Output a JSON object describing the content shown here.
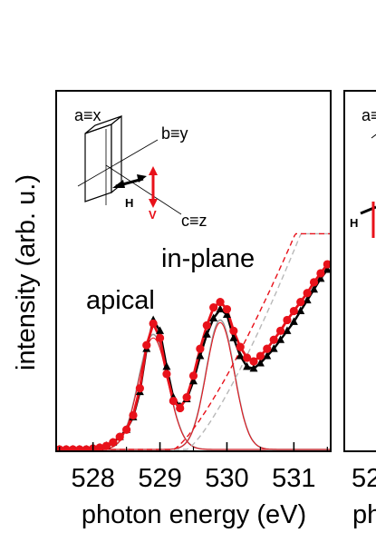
{
  "chart_data": {
    "type": "line",
    "xlabel": "photon energy (eV)",
    "ylabel": "intensity (arb. u.)",
    "xlim": [
      527.45,
      531.55
    ],
    "ylim": [
      0,
      1.0
    ],
    "xticks": [
      528,
      529,
      530,
      531
    ],
    "xtick_labels": [
      "528",
      "529",
      "530",
      "531"
    ],
    "annotations": {
      "apical": "apical",
      "in_plane": "in-plane"
    },
    "inset": {
      "a_label": "a≡x",
      "b_label": "b≡y",
      "c_label": "c≡z",
      "h_label": "H",
      "v_label": "V"
    },
    "second_panel_fragments": {
      "a_label": "a≡",
      "h_label": "H",
      "tick_fragment": "52",
      "xlabel_fragment": "ph"
    },
    "series": [
      {
        "marker": "triangle",
        "color": "#000000",
        "x": [
          527.5,
          527.6,
          527.7,
          527.8,
          527.9,
          528.0,
          528.1,
          528.2,
          528.3,
          528.4,
          528.5,
          528.6,
          528.7,
          528.8,
          528.9,
          529.0,
          529.1,
          529.2,
          529.3,
          529.4,
          529.5,
          529.6,
          529.7,
          529.8,
          529.9,
          530.0,
          530.1,
          530.2,
          530.3,
          530.4,
          530.5,
          530.6,
          530.7,
          530.8,
          530.9,
          531.0,
          531.1,
          531.2,
          531.3,
          531.4,
          531.5
        ],
        "values": [
          0.0,
          0.0,
          0.0,
          0.0,
          0.0,
          0.005,
          0.01,
          0.02,
          0.04,
          0.07,
          0.11,
          0.18,
          0.32,
          0.56,
          0.72,
          0.66,
          0.46,
          0.29,
          0.24,
          0.28,
          0.38,
          0.52,
          0.64,
          0.73,
          0.78,
          0.75,
          0.62,
          0.52,
          0.46,
          0.45,
          0.48,
          0.52,
          0.56,
          0.61,
          0.66,
          0.71,
          0.77,
          0.83,
          0.89,
          0.95,
          1.0
        ]
      },
      {
        "marker": "circle",
        "color": "#e8111a",
        "x": [
          527.5,
          527.6,
          527.7,
          527.8,
          527.9,
          528.0,
          528.1,
          528.2,
          528.3,
          528.4,
          528.5,
          528.6,
          528.7,
          528.8,
          528.9,
          529.0,
          529.1,
          529.2,
          529.3,
          529.4,
          529.5,
          529.6,
          529.7,
          529.8,
          529.9,
          530.0,
          530.1,
          530.2,
          530.3,
          530.4,
          530.5,
          530.6,
          530.7,
          530.8,
          530.9,
          531.0,
          531.1,
          531.2,
          531.3,
          531.4,
          531.5
        ],
        "values": [
          0.0,
          0.0,
          0.0,
          0.0,
          0.0,
          0.005,
          0.01,
          0.02,
          0.04,
          0.07,
          0.11,
          0.19,
          0.34,
          0.58,
          0.7,
          0.62,
          0.42,
          0.27,
          0.23,
          0.29,
          0.41,
          0.56,
          0.69,
          0.79,
          0.82,
          0.78,
          0.66,
          0.57,
          0.51,
          0.49,
          0.52,
          0.56,
          0.61,
          0.66,
          0.72,
          0.77,
          0.82,
          0.87,
          0.93,
          0.98,
          1.03
        ]
      }
    ],
    "fits": {
      "apical_peak": {
        "center": 528.9,
        "height": 0.64,
        "width": 0.22
      },
      "in_plane_peak": {
        "center": 529.9,
        "height": 0.72,
        "width": 0.21
      },
      "background_black": {
        "onset": 529.4,
        "slope": 0.6
      },
      "background_red": {
        "onset": 529.2,
        "slope": 0.55
      }
    }
  }
}
